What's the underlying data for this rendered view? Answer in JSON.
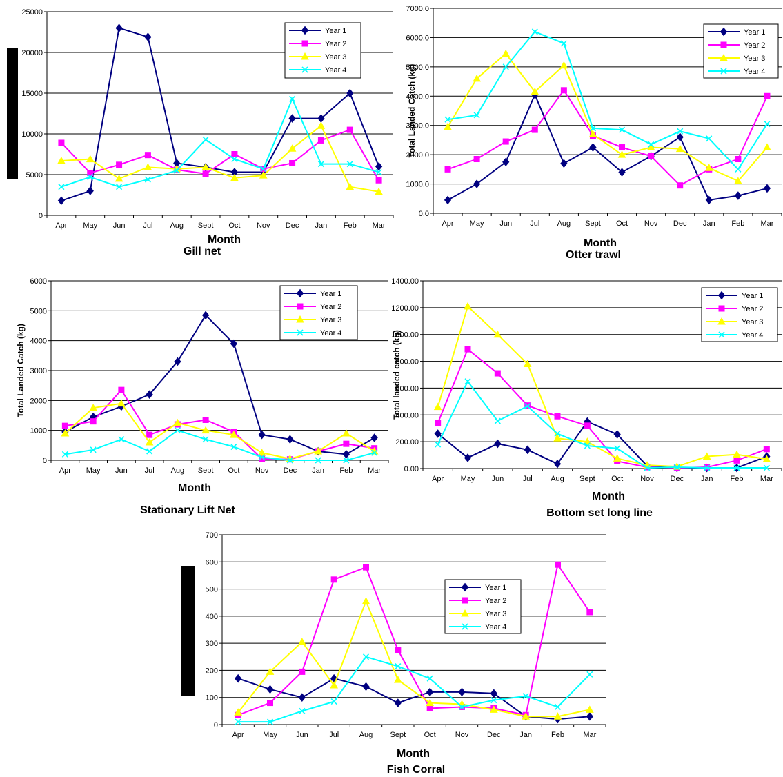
{
  "series_names": [
    "Year 1",
    "Year 2",
    "Year 3",
    "Year 4"
  ],
  "series_colors": [
    "#000080",
    "#FF00FF",
    "#FFFF00",
    "#00FFFF"
  ],
  "series_markers": [
    "diamond",
    "square",
    "triangle",
    "x"
  ],
  "chart_data": [
    {
      "type": "line",
      "title": "Gill net",
      "xlabel": "Month",
      "ylabel": "",
      "categories": [
        "Apr",
        "May",
        "Jun",
        "Jul",
        "Aug",
        "Sept",
        "Oct",
        "Nov",
        "Dec",
        "Jan",
        "Feb",
        "Mar"
      ],
      "ylim": [
        0,
        25000
      ],
      "yticks": [
        "0",
        "5000",
        "10000",
        "15000",
        "20000",
        "25000"
      ],
      "grid": true,
      "legend": "top-right",
      "series": [
        {
          "name": "Year 1",
          "values": [
            1800,
            3000,
            23000,
            21900,
            6400,
            5900,
            5300,
            5300,
            11900,
            11900,
            15000,
            6000
          ]
        },
        {
          "name": "Year 2",
          "values": [
            8900,
            5200,
            6200,
            7400,
            5600,
            5100,
            7500,
            5700,
            6400,
            9200,
            10500,
            4300
          ]
        },
        {
          "name": "Year 3",
          "values": [
            6700,
            6900,
            4500,
            5900,
            5700,
            5900,
            4600,
            4900,
            8200,
            11000,
            3500,
            2900
          ]
        },
        {
          "name": "Year 4",
          "values": [
            3500,
            4700,
            3500,
            4400,
            5500,
            9300,
            6900,
            5700,
            14300,
            6300,
            6300,
            5300
          ]
        }
      ]
    },
    {
      "type": "line",
      "title": "Otter trawl",
      "xlabel": "Month",
      "ylabel": "Total Landed Catch (kg)",
      "categories": [
        "Apr",
        "May",
        "Jun",
        "Jul",
        "Aug",
        "Sept",
        "Oct",
        "Nov",
        "Dec",
        "Jan",
        "Feb",
        "Mar"
      ],
      "ylim": [
        0,
        7000
      ],
      "yticks": [
        "0.0",
        "1000.0",
        "2000.0",
        "3000.0",
        "4000.0",
        "5000.0",
        "6000.0",
        "7000.0"
      ],
      "grid": true,
      "legend": "top-right",
      "series": [
        {
          "name": "Year 1",
          "values": [
            450,
            1000,
            1750,
            4050,
            1700,
            2250,
            1400,
            1950,
            2600,
            450,
            600,
            850
          ]
        },
        {
          "name": "Year 2",
          "values": [
            1500,
            1850,
            2450,
            2850,
            4200,
            2650,
            2250,
            1950,
            950,
            1500,
            1850,
            4000
          ]
        },
        {
          "name": "Year 3",
          "values": [
            2950,
            4600,
            5450,
            4150,
            5050,
            2700,
            2000,
            2250,
            2200,
            1550,
            1100,
            2250
          ]
        },
        {
          "name": "Year 4",
          "values": [
            3200,
            3350,
            5000,
            6200,
            5800,
            2900,
            2850,
            2350,
            2800,
            2550,
            1500,
            3050
          ]
        }
      ]
    },
    {
      "type": "line",
      "title": "Stationary Lift Net",
      "xlabel": "Month",
      "ylabel": "Total Landed Catch (kg)",
      "categories": [
        "Apr",
        "May",
        "Jun",
        "Jul",
        "Aug",
        "Sept",
        "Oct",
        "Nov",
        "Dec",
        "Jan",
        "Feb",
        "Mar"
      ],
      "ylim": [
        0,
        6000
      ],
      "yticks": [
        "0",
        "1000",
        "2000",
        "3000",
        "4000",
        "5000",
        "6000"
      ],
      "grid": true,
      "legend": "top-right",
      "series": [
        {
          "name": "Year 1",
          "values": [
            950,
            1450,
            1800,
            2200,
            3300,
            4850,
            3900,
            850,
            700,
            300,
            200,
            750
          ]
        },
        {
          "name": "Year 2",
          "values": [
            1150,
            1300,
            2350,
            850,
            1200,
            1350,
            950,
            50,
            30,
            300,
            550,
            400
          ]
        },
        {
          "name": "Year 3",
          "values": [
            900,
            1750,
            1900,
            600,
            1250,
            1000,
            850,
            250,
            50,
            300,
            900,
            300
          ]
        },
        {
          "name": "Year 4",
          "values": [
            200,
            350,
            700,
            300,
            1000,
            700,
            450,
            100,
            0,
            0,
            0,
            250
          ]
        }
      ]
    },
    {
      "type": "line",
      "title": "Bottom set long line",
      "xlabel": "Month",
      "ylabel": "Total landed catch (kg)",
      "categories": [
        "Apr",
        "May",
        "Jun",
        "Jul",
        "Aug",
        "Sept",
        "Oct",
        "Nov",
        "Dec",
        "Jan",
        "Feb",
        "Mar"
      ],
      "ylim": [
        0,
        1400
      ],
      "yticks": [
        "0.00",
        "200.00",
        "400.00",
        "600.00",
        "800.00",
        "1000.00",
        "1200.00",
        "1400.00"
      ],
      "grid": true,
      "legend": "top-right",
      "series": [
        {
          "name": "Year 1",
          "values": [
            260,
            80,
            185,
            140,
            35,
            350,
            255,
            20,
            5,
            5,
            5,
            90
          ]
        },
        {
          "name": "Year 2",
          "values": [
            340,
            890,
            710,
            470,
            390,
            320,
            55,
            10,
            5,
            10,
            60,
            145
          ]
        },
        {
          "name": "Year 3",
          "values": [
            460,
            1210,
            1000,
            780,
            225,
            200,
            75,
            25,
            15,
            90,
            105,
            70
          ]
        },
        {
          "name": "Year 4",
          "values": [
            180,
            650,
            355,
            465,
            260,
            170,
            150,
            5,
            10,
            5,
            5,
            5
          ]
        }
      ]
    },
    {
      "type": "line",
      "title": "Fish Corral",
      "xlabel": "Month",
      "ylabel": "",
      "categories": [
        "Apr",
        "May",
        "Jun",
        "Jul",
        "Aug",
        "Sept",
        "Oct",
        "Nov",
        "Dec",
        "Jan",
        "Feb",
        "Mar"
      ],
      "ylim": [
        0,
        700
      ],
      "yticks": [
        "0",
        "100",
        "200",
        "300",
        "400",
        "500",
        "600",
        "700"
      ],
      "grid": true,
      "legend": "top-center",
      "series": [
        {
          "name": "Year 1",
          "values": [
            170,
            130,
            100,
            170,
            140,
            80,
            120,
            120,
            115,
            30,
            20,
            30
          ]
        },
        {
          "name": "Year 2",
          "values": [
            35,
            80,
            195,
            535,
            580,
            275,
            60,
            65,
            60,
            35,
            590,
            415
          ]
        },
        {
          "name": "Year 3",
          "values": [
            45,
            195,
            305,
            145,
            455,
            165,
            80,
            75,
            55,
            30,
            30,
            55
          ]
        },
        {
          "name": "Year 4",
          "values": [
            10,
            10,
            50,
            85,
            250,
            215,
            170,
            65,
            90,
            105,
            65,
            185
          ]
        }
      ]
    }
  ]
}
